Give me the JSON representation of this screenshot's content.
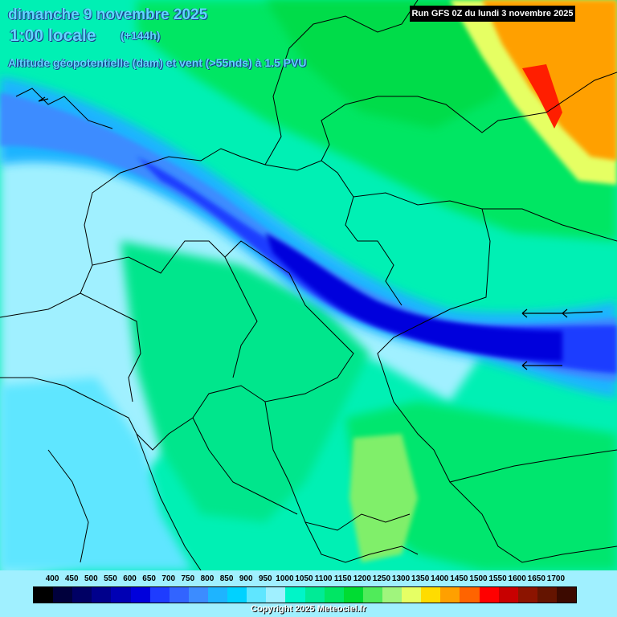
{
  "header": {
    "date": "dimanche 9 novembre 2025",
    "local_time": "1:00 locale",
    "lead_time": "(+144h)",
    "parameter": "Altitude géopotentielle (dam) et vent (>55nds) à 1.5 PVU",
    "run": "Run GFS 0Z du lundi 3 novembre 2025"
  },
  "legend": {
    "labels": [
      "400",
      "450",
      "500",
      "550",
      "600",
      "650",
      "700",
      "750",
      "800",
      "850",
      "900",
      "950",
      "1000",
      "1050",
      "1100",
      "1150",
      "1200",
      "1250",
      "1300",
      "1350",
      "1400",
      "1450",
      "1500",
      "1550",
      "1600",
      "1650",
      "1700"
    ],
    "colors": [
      "#000000",
      "#00003c",
      "#000064",
      "#00008c",
      "#0000b4",
      "#0000dc",
      "#1e3cff",
      "#3264ff",
      "#3c8cff",
      "#1eb4ff",
      "#00d2ff",
      "#5fe6ff",
      "#a0f0ff",
      "#00f5c8",
      "#00eb96",
      "#00e664",
      "#00dc32",
      "#50eb5a",
      "#a0f57d",
      "#e6ff64",
      "#ffdc00",
      "#ffa000",
      "#ff6400",
      "#ff0000",
      "#c80000",
      "#8c1400",
      "#641400",
      "#3c0a00"
    ]
  },
  "colors": {
    "header_text": "#5fd9ff",
    "header_shadow": "#1a3a8a",
    "jet_core": "#0000dc",
    "ridge": "#ffa000"
  },
  "copyright": "Copyright 2025 Meteociel.fr"
}
